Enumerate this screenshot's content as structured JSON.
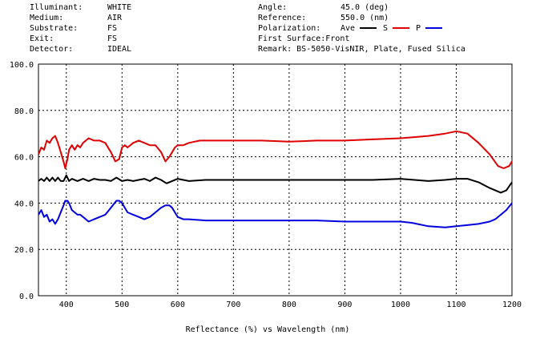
{
  "header": {
    "left": [
      {
        "label": "Illuminant:",
        "value": "WHITE"
      },
      {
        "label": "Medium:",
        "value": "AIR"
      },
      {
        "label": "Substrate:",
        "value": "FS"
      },
      {
        "label": "Exit:",
        "value": "FS"
      },
      {
        "label": "Detector:",
        "value": "IDEAL"
      }
    ],
    "right": {
      "angle_label": "Angle:",
      "angle_value": "45.0 (deg)",
      "reference_label": "Reference:",
      "reference_value": "550.0 (nm)",
      "polarization_label": "Polarization:",
      "legend": [
        {
          "name": "Ave",
          "color": "#000000"
        },
        {
          "name": "S",
          "color": "#e00000"
        },
        {
          "name": "P",
          "color": "#0000e0"
        }
      ],
      "first_surface": "First Surface:Front",
      "remark": "Remark: BS-5050-VisNIR, Plate, Fused Silica"
    }
  },
  "chart_data": {
    "type": "line",
    "xlabel": "Reflectance (%)  vs  Wavelength (nm)",
    "ylabel": "",
    "xlim": [
      350,
      1200
    ],
    "ylim": [
      0,
      100
    ],
    "x_ticks": [
      "400",
      "500",
      "600",
      "700",
      "800",
      "900",
      "1000",
      "1100",
      "1200"
    ],
    "y_ticks": [
      "0.0",
      "20.0",
      "40.0",
      "60.0",
      "80.0",
      "100.0"
    ],
    "grid": true,
    "legend_position": "top-right",
    "series": [
      {
        "name": "S",
        "color": "#e00000",
        "x": [
          350,
          355,
          360,
          365,
          370,
          375,
          380,
          385,
          390,
          395,
          398,
          402,
          405,
          410,
          415,
          420,
          425,
          430,
          440,
          450,
          460,
          470,
          480,
          488,
          495,
          500,
          505,
          510,
          520,
          530,
          540,
          550,
          560,
          570,
          578,
          585,
          590,
          595,
          600,
          610,
          620,
          640,
          660,
          680,
          700,
          750,
          800,
          850,
          900,
          950,
          1000,
          1050,
          1080,
          1100,
          1120,
          1140,
          1160,
          1175,
          1185,
          1195,
          1200
        ],
        "y": [
          61,
          64,
          63,
          67,
          66,
          68,
          69,
          66,
          62,
          58,
          55,
          59,
          63,
          65,
          63,
          65,
          64,
          66,
          68,
          67,
          67,
          66,
          62,
          58,
          59,
          64,
          65,
          64,
          66,
          67,
          66,
          65,
          65,
          62,
          58,
          60,
          62,
          64,
          65,
          65,
          66,
          67,
          67,
          67,
          67,
          67,
          66.5,
          67,
          67,
          67.5,
          68,
          69,
          70,
          71,
          70,
          66,
          61,
          56,
          55,
          56,
          58
        ]
      },
      {
        "name": "Ave",
        "color": "#000000",
        "x": [
          350,
          355,
          360,
          365,
          370,
          375,
          380,
          385,
          390,
          395,
          400,
          405,
          410,
          420,
          430,
          440,
          450,
          460,
          470,
          480,
          490,
          500,
          510,
          520,
          530,
          540,
          550,
          560,
          570,
          580,
          590,
          600,
          620,
          650,
          700,
          750,
          800,
          850,
          900,
          950,
          1000,
          1050,
          1080,
          1100,
          1120,
          1140,
          1160,
          1180,
          1190,
          1200
        ],
        "y": [
          49.5,
          50.5,
          49.5,
          51,
          49.5,
          51,
          49.5,
          51,
          49.5,
          49.5,
          52,
          49.5,
          50.5,
          49.5,
          50.5,
          49.5,
          50.5,
          50,
          50,
          49.5,
          51,
          49.5,
          50,
          49.5,
          50,
          50.5,
          49.5,
          51,
          50,
          48.5,
          49.5,
          50.5,
          49.5,
          50,
          50,
          50,
          50,
          50,
          50,
          50,
          50.5,
          49.5,
          50,
          50.5,
          50.5,
          49,
          46.5,
          44.5,
          45.5,
          49
        ]
      },
      {
        "name": "P",
        "color": "#0000e0",
        "x": [
          350,
          355,
          360,
          365,
          370,
          375,
          380,
          385,
          390,
          395,
          398,
          402,
          405,
          410,
          415,
          420,
          425,
          430,
          440,
          450,
          460,
          470,
          480,
          490,
          495,
          500,
          510,
          520,
          530,
          540,
          550,
          560,
          570,
          578,
          585,
          590,
          595,
          600,
          610,
          620,
          650,
          700,
          750,
          800,
          850,
          900,
          950,
          1000,
          1020,
          1050,
          1080,
          1100,
          1120,
          1140,
          1160,
          1170,
          1180,
          1190,
          1200
        ],
        "y": [
          35,
          37,
          34,
          35,
          32,
          33,
          31,
          33,
          36,
          39,
          41,
          41,
          40,
          37,
          36,
          35,
          35,
          34,
          32,
          33,
          34,
          35,
          38,
          41,
          41,
          40,
          36,
          35,
          34,
          33,
          34,
          36,
          38,
          39,
          39,
          38,
          36,
          34,
          33,
          33,
          32.5,
          32.5,
          32.5,
          32.5,
          32.5,
          32,
          32,
          32,
          31.5,
          30,
          29.5,
          30,
          30.5,
          31,
          32,
          33,
          35,
          37,
          40
        ]
      }
    ]
  }
}
